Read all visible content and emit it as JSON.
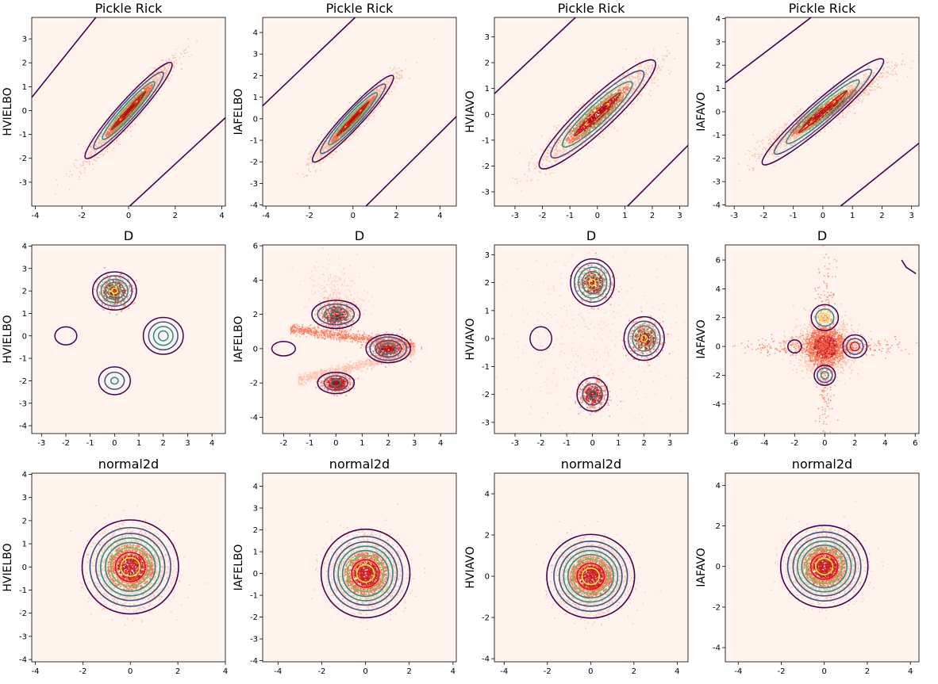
{
  "chart_data": [
    {
      "type": "heatmap",
      "title": "Pickle Rick",
      "ylabel": "HVIELBO",
      "xlim": [
        -4.15,
        4.15
      ],
      "ylim": [
        -4.0,
        3.9
      ],
      "xticks": [
        -4,
        -2,
        0,
        2,
        4
      ],
      "yticks": [
        -3,
        -2,
        -1,
        0,
        1,
        2,
        3
      ],
      "density": {
        "kind": "ellipse",
        "center": [
          0,
          0
        ],
        "angle_deg": 48,
        "semi_axes": [
          2.75,
          0.42
        ]
      },
      "contours": {
        "kind": "ellipse",
        "center": [
          0,
          0
        ],
        "angle_deg": 48,
        "levels": [
          [
            0.55,
            0.085
          ],
          [
            1.1,
            0.17
          ],
          [
            1.65,
            0.25
          ],
          [
            2.2,
            0.34
          ],
          [
            2.75,
            0.42
          ]
        ]
      },
      "extra_lines": [
        [
          [
            -4.15,
            0.55
          ],
          [
            -1.4,
            3.9
          ]
        ],
        [
          [
            0.05,
            -4.0
          ],
          [
            4.15,
            -0.3
          ]
        ]
      ]
    },
    {
      "type": "heatmap",
      "title": "Pickle Rick",
      "ylabel": "IAFELBO",
      "xlim": [
        -4.15,
        4.75
      ],
      "ylim": [
        -4.05,
        4.7
      ],
      "xticks": [
        -4,
        -2,
        0,
        2,
        4
      ],
      "yticks": [
        -4,
        -3,
        -2,
        -1,
        0,
        1,
        2,
        3,
        4
      ],
      "density": {
        "kind": "ellipse",
        "center": [
          0,
          0
        ],
        "angle_deg": 47,
        "semi_axes": [
          2.7,
          0.42
        ]
      },
      "contours": {
        "kind": "ellipse",
        "center": [
          0,
          0
        ],
        "angle_deg": 47,
        "levels": [
          [
            0.54,
            0.085
          ],
          [
            1.08,
            0.17
          ],
          [
            1.62,
            0.25
          ],
          [
            2.16,
            0.34
          ],
          [
            2.7,
            0.42
          ]
        ]
      },
      "extra_lines": [
        [
          [
            -4.15,
            0.6
          ],
          [
            0.1,
            4.7
          ]
        ],
        [
          [
            0.6,
            -4.05
          ],
          [
            4.75,
            0.1
          ]
        ]
      ]
    },
    {
      "type": "heatmap",
      "title": "Pickle Rick",
      "ylabel": "HVIAVO",
      "xlim": [
        -3.75,
        3.3
      ],
      "ylim": [
        -3.55,
        3.75
      ],
      "xticks": [
        -3,
        -2,
        -1,
        0,
        1,
        2,
        3
      ],
      "yticks": [
        -3,
        -2,
        -1,
        0,
        1,
        2,
        3
      ],
      "density": {
        "kind": "ellipse",
        "center": [
          0,
          0
        ],
        "angle_deg": 43,
        "semi_axes": [
          2.85,
          0.6
        ]
      },
      "contours": {
        "kind": "ellipse",
        "center": [
          0,
          0
        ],
        "angle_deg": 43,
        "levels": [
          [
            0.57,
            0.12
          ],
          [
            1.14,
            0.24
          ],
          [
            1.71,
            0.36
          ],
          [
            2.28,
            0.48
          ],
          [
            2.85,
            0.6
          ]
        ]
      },
      "extra_lines": [
        [
          [
            -3.75,
            0.8
          ],
          [
            -0.8,
            3.75
          ]
        ],
        [
          [
            1.1,
            -3.55
          ],
          [
            3.3,
            -1.2
          ]
        ]
      ]
    },
    {
      "type": "heatmap",
      "title": "Pickle Rick",
      "ylabel": "IAFAVO",
      "xlim": [
        -3.3,
        3.25
      ],
      "ylim": [
        -4.05,
        4.05
      ],
      "xticks": [
        -3,
        -2,
        -1,
        0,
        1,
        2,
        3
      ],
      "yticks": [
        -4,
        -3,
        -2,
        -1,
        0,
        1,
        2,
        3,
        4
      ],
      "density": {
        "kind": "ellipse",
        "center": [
          0,
          0
        ],
        "angle_deg": 41,
        "semi_axes": [
          2.7,
          0.52
        ]
      },
      "contours": {
        "kind": "ellipse",
        "center": [
          0,
          0
        ],
        "angle_deg": 41,
        "levels": [
          [
            0.54,
            0.1
          ],
          [
            1.08,
            0.21
          ],
          [
            1.62,
            0.31
          ],
          [
            2.16,
            0.42
          ],
          [
            2.7,
            0.52
          ]
        ]
      },
      "extra_lines": [
        [
          [
            -3.3,
            1.25
          ],
          [
            -0.4,
            4.05
          ]
        ],
        [
          [
            0.6,
            -4.05
          ],
          [
            3.25,
            -1.35
          ]
        ]
      ]
    },
    {
      "type": "heatmap",
      "title": "D",
      "ylabel": "HVIELBO",
      "xlim": [
        -3.4,
        4.55
      ],
      "ylim": [
        -4.35,
        4.05
      ],
      "xticks": [
        -3,
        -2,
        -1,
        0,
        1,
        2,
        3,
        4
      ],
      "yticks": [
        -4,
        -3,
        -2,
        -1,
        0,
        1,
        2,
        3,
        4
      ],
      "density": {
        "kind": "blobs",
        "items": [
          [
            0,
            2,
            0.35
          ]
        ]
      },
      "contours": {
        "kind": "circles",
        "items": [
          [
            0,
            2,
            [
              [
                0.12,
                0.12
              ],
              [
                0.25,
                0.24
              ],
              [
                0.4,
                0.38
              ],
              [
                0.55,
                0.52
              ],
              [
                0.72,
                0.68
              ],
              [
                0.9,
                0.85
              ]
            ],
            "purple-teal"
          ],
          [
            2,
            0,
            [
              [
                0.2,
                0.22
              ],
              [
                0.4,
                0.42
              ],
              [
                0.6,
                0.62
              ],
              [
                0.82,
                0.82
              ]
            ],
            "teal-purple"
          ],
          [
            0,
            -2,
            [
              [
                0.15,
                0.15
              ],
              [
                0.4,
                0.38
              ],
              [
                0.65,
                0.62
              ]
            ],
            "teal-purple"
          ],
          [
            -2,
            0,
            [
              [
                0.45,
                0.4
              ]
            ],
            "purple"
          ]
        ]
      },
      "extra_lines": []
    },
    {
      "type": "heatmap",
      "title": "D",
      "ylabel": "IAFELBO",
      "xlim": [
        -2.8,
        4.6
      ],
      "ylim": [
        -4.95,
        6.05
      ],
      "xticks": [
        -2,
        -1,
        0,
        1,
        2,
        3,
        4
      ],
      "yticks": [
        -4,
        -2,
        0,
        2,
        4,
        6
      ],
      "density": {
        "kind": "streams",
        "items": [
          [
            0,
            2,
            0.3,
            0.35
          ],
          [
            2,
            0,
            0.35,
            0.35
          ],
          [
            0,
            -2,
            0.25,
            0.25
          ]
        ]
      },
      "contours": {
        "kind": "circles",
        "items": [
          [
            0,
            2,
            [
              [
                0.2,
                0.2
              ],
              [
                0.45,
                0.4
              ],
              [
                0.7,
                0.6
              ],
              [
                0.92,
                0.82
              ]
            ],
            "teal-purple"
          ],
          [
            2,
            0,
            [
              [
                0.15,
                0.15
              ],
              [
                0.3,
                0.3
              ],
              [
                0.5,
                0.48
              ],
              [
                0.7,
                0.68
              ],
              [
                0.85,
                0.82
              ]
            ],
            "red-purple"
          ],
          [
            0,
            -2,
            [
              [
                0.18,
                0.18
              ],
              [
                0.45,
                0.42
              ],
              [
                0.7,
                0.62
              ]
            ],
            "teal-purple"
          ],
          [
            -2,
            0,
            [
              [
                0.45,
                0.42
              ]
            ],
            "purple"
          ]
        ]
      },
      "extra_lines": []
    },
    {
      "type": "heatmap",
      "title": "D",
      "ylabel": "HVIAVO",
      "xlim": [
        -3.8,
        3.7
      ],
      "ylim": [
        -3.4,
        3.35
      ],
      "xticks": [
        -3,
        -2,
        -1,
        0,
        1,
        2,
        3
      ],
      "yticks": [
        -3,
        -2,
        -1,
        0,
        1,
        2,
        3
      ],
      "density": {
        "kind": "blobs4",
        "items": [
          [
            0,
            2,
            0.3
          ],
          [
            2,
            0,
            0.3
          ],
          [
            0,
            -2,
            0.25
          ]
        ]
      },
      "contours": {
        "kind": "circles",
        "items": [
          [
            0,
            2,
            [
              [
                0.12,
                0.12
              ],
              [
                0.25,
                0.25
              ],
              [
                0.4,
                0.4
              ],
              [
                0.55,
                0.55
              ],
              [
                0.7,
                0.7
              ],
              [
                0.85,
                0.85
              ]
            ],
            "purple-teal"
          ],
          [
            2,
            0,
            [
              [
                0.12,
                0.12
              ],
              [
                0.28,
                0.28
              ],
              [
                0.45,
                0.45
              ],
              [
                0.62,
                0.62
              ],
              [
                0.78,
                0.78
              ]
            ],
            "purple-teal"
          ],
          [
            0,
            -2,
            [
              [
                0.15,
                0.15
              ],
              [
                0.38,
                0.38
              ],
              [
                0.6,
                0.6
              ]
            ],
            "teal-purple"
          ],
          [
            -2,
            0,
            [
              [
                0.42,
                0.42
              ]
            ],
            "purple"
          ]
        ]
      },
      "extra_lines": []
    },
    {
      "type": "heatmap",
      "title": "D",
      "ylabel": "IAFAVO",
      "xlim": [
        -6.6,
        6.25
      ],
      "ylim": [
        -6.05,
        7.05
      ],
      "xticks": [
        -6,
        -4,
        -2,
        0,
        2,
        4,
        6
      ],
      "yticks": [
        -4,
        -2,
        0,
        2,
        4,
        6
      ],
      "density": {
        "kind": "cross",
        "items": [
          [
            0,
            0,
            1.6,
            1.3
          ]
        ]
      },
      "contours": {
        "kind": "circles",
        "items": [
          [
            0,
            2,
            [
              [
                0.3,
                0.3
              ],
              [
                0.6,
                0.6
              ],
              [
                0.9,
                0.9
              ]
            ],
            "yellow-purple"
          ],
          [
            2,
            0,
            [
              [
                0.3,
                0.3
              ],
              [
                0.55,
                0.55
              ],
              [
                0.8,
                0.8
              ]
            ],
            "red-purple"
          ],
          [
            0,
            -2,
            [
              [
                0.25,
                0.25
              ],
              [
                0.5,
                0.5
              ],
              [
                0.7,
                0.7
              ]
            ],
            "teal-purple"
          ],
          [
            -2,
            0,
            [
              [
                0.45,
                0.45
              ]
            ],
            "purple"
          ]
        ]
      },
      "extra_lines": [
        [
          [
            5.1,
            6.0
          ],
          [
            5.4,
            5.5
          ],
          [
            6.05,
            5.05
          ]
        ]
      ]
    },
    {
      "type": "heatmap",
      "title": "normal2d",
      "ylabel": "HVIELBO",
      "xlim": [
        -4.15,
        4.0
      ],
      "ylim": [
        -4.1,
        4.05
      ],
      "xticks": [
        -4,
        -2,
        0,
        2,
        4
      ],
      "yticks": [
        -4,
        -3,
        -2,
        -1,
        0,
        1,
        2,
        3,
        4
      ],
      "density": {
        "kind": "gaussian",
        "sigma": 0.75
      },
      "contours": {
        "kind": "rings",
        "radii": [
          0.4,
          0.63,
          0.83,
          1.05,
          1.25,
          1.45,
          1.7,
          2.03
        ]
      },
      "extra_lines": []
    },
    {
      "type": "heatmap",
      "title": "normal2d",
      "ylabel": "IAFELBO",
      "xlim": [
        -4.7,
        4.15
      ],
      "ylim": [
        -4.05,
        4.6
      ],
      "xticks": [
        -4,
        -2,
        0,
        2,
        4
      ],
      "yticks": [
        -4,
        -3,
        -2,
        -1,
        0,
        1,
        2,
        3,
        4
      ],
      "density": {
        "kind": "gaussian",
        "sigma": 0.75
      },
      "contours": {
        "kind": "rings",
        "radii": [
          0.4,
          0.63,
          0.83,
          1.05,
          1.25,
          1.45,
          1.7,
          2.03
        ]
      },
      "extra_lines": []
    },
    {
      "type": "heatmap",
      "title": "normal2d",
      "ylabel": "HVIAVO",
      "xlim": [
        -4.45,
        4.5
      ],
      "ylim": [
        -4.15,
        5.0
      ],
      "xticks": [
        -4,
        -2,
        0,
        2,
        4
      ],
      "yticks": [
        -4,
        -2,
        0,
        2,
        4
      ],
      "density": {
        "kind": "gaussian",
        "sigma": 0.75
      },
      "contours": {
        "kind": "rings",
        "radii": [
          0.4,
          0.63,
          0.83,
          1.05,
          1.25,
          1.45,
          1.7,
          2.03
        ]
      },
      "extra_lines": []
    },
    {
      "type": "heatmap",
      "title": "normal2d",
      "ylabel": "IAFAVO",
      "xlim": [
        -4.6,
        4.4
      ],
      "ylim": [
        -4.7,
        4.6
      ],
      "xticks": [
        -4,
        -2,
        0,
        2,
        4
      ],
      "yticks": [
        -4,
        -2,
        0,
        2,
        4
      ],
      "density": {
        "kind": "gaussian",
        "sigma": 0.75
      },
      "contours": {
        "kind": "rings",
        "radii": [
          0.4,
          0.63,
          0.83,
          1.05,
          1.25,
          1.45,
          1.7,
          2.03
        ]
      },
      "extra_lines": []
    }
  ],
  "colors": {
    "background": "#fff3ee",
    "density_low": "#fcbba1",
    "density_mid": "#fb6a4a",
    "density_high": "#cb181d",
    "density_peak": "#a50f15",
    "contour_levels": [
      "#440154",
      "#3b528b",
      "#21918c",
      "#5ec962",
      "#fde725"
    ],
    "extra_line": "#440154"
  }
}
